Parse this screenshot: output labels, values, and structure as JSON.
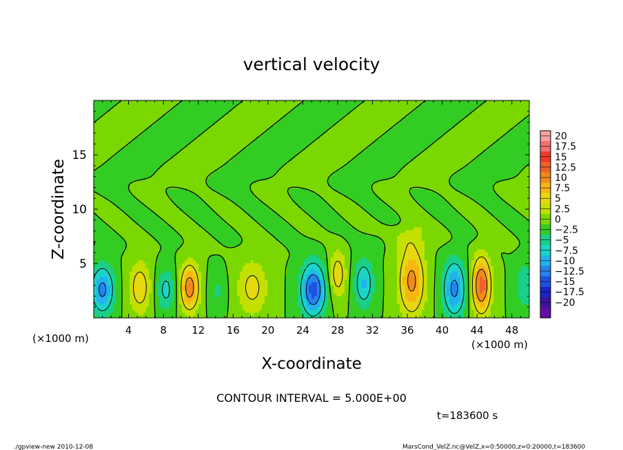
{
  "chart_data": {
    "type": "heatmap",
    "title": "vertical velocity",
    "xlabel": "X-coordinate",
    "ylabel": "Z-coordinate",
    "x_unit_left": "(×1000 m)",
    "x_unit_right": "(×1000 m)",
    "xlim": [
      0,
      50
    ],
    "ylim": [
      0,
      20
    ],
    "x_ticks": [
      4,
      8,
      12,
      16,
      20,
      24,
      28,
      32,
      36,
      40,
      44,
      48
    ],
    "y_ticks": [
      5,
      10,
      15
    ],
    "contour_interval_text": "CONTOUR INTERVAL = 5.000E+00",
    "contour_interval": 5,
    "time_label": "t=183600 s",
    "colorbar": {
      "levels": [
        20,
        17.5,
        15,
        12.5,
        10,
        7.5,
        5,
        2.5,
        0,
        -2.5,
        -5,
        -7.5,
        -10,
        -12.5,
        -15,
        -17.5,
        -20
      ],
      "colors": [
        "#f6a0a0",
        "#f07070",
        "#ee3a2a",
        "#f0602a",
        "#f08a1e",
        "#f7b512",
        "#e6d70e",
        "#c4e000",
        "#7ad800",
        "#33cc22",
        "#18d08a",
        "#1ad4c8",
        "#21b2ee",
        "#2483ee",
        "#1e52e0",
        "#1a24c8",
        "#3a14a0",
        "#6010a0"
      ]
    },
    "features": [
      {
        "x": 1,
        "z": 2.6,
        "w": -11,
        "sx": 1.3,
        "sz": 2.2
      },
      {
        "x": 5.3,
        "z": 2.8,
        "w": 7,
        "sx": 1.3,
        "sz": 2.5
      },
      {
        "x": 8.3,
        "z": 2.6,
        "w": -6,
        "sx": 1.1,
        "sz": 2.0
      },
      {
        "x": 11,
        "z": 2.8,
        "w": 12,
        "sx": 1.1,
        "sz": 2.2
      },
      {
        "x": 14.2,
        "z": 2.5,
        "w": -3,
        "sx": 1.0,
        "sz": 1.8
      },
      {
        "x": 18.2,
        "z": 2.8,
        "w": 6,
        "sx": 1.8,
        "sz": 2.6
      },
      {
        "x": 25.2,
        "z": 2.6,
        "w": -14,
        "sx": 1.4,
        "sz": 2.4
      },
      {
        "x": 28,
        "z": 4.0,
        "w": 7,
        "sx": 1.0,
        "sz": 2.2
      },
      {
        "x": 31,
        "z": 3.2,
        "w": -8,
        "sx": 1.1,
        "sz": 2.2
      },
      {
        "x": 36.5,
        "z": 3.4,
        "w": 11,
        "sx": 1.5,
        "sz": 3.2
      },
      {
        "x": 41.4,
        "z": 2.7,
        "w": -11,
        "sx": 1.3,
        "sz": 2.6
      },
      {
        "x": 44.5,
        "z": 3.0,
        "w": 14,
        "sx": 1.1,
        "sz": 2.6
      },
      {
        "x": 49.5,
        "z": 3.0,
        "w": -5,
        "sx": 1.0,
        "sz": 2.2
      },
      {
        "x": 35.5,
        "z": 7.5,
        "w": 3,
        "sx": 3.0,
        "sz": 1.2
      },
      {
        "x": 33,
        "z": 7.2,
        "w": -2,
        "sx": 2.0,
        "sz": 1.0
      }
    ]
  },
  "footer": {
    "left": "./gpview-new  2010-12-08",
    "right": "MarsCond_VelZ.nc@VelZ,x=0:50000,z=0:20000,t=183600"
  }
}
